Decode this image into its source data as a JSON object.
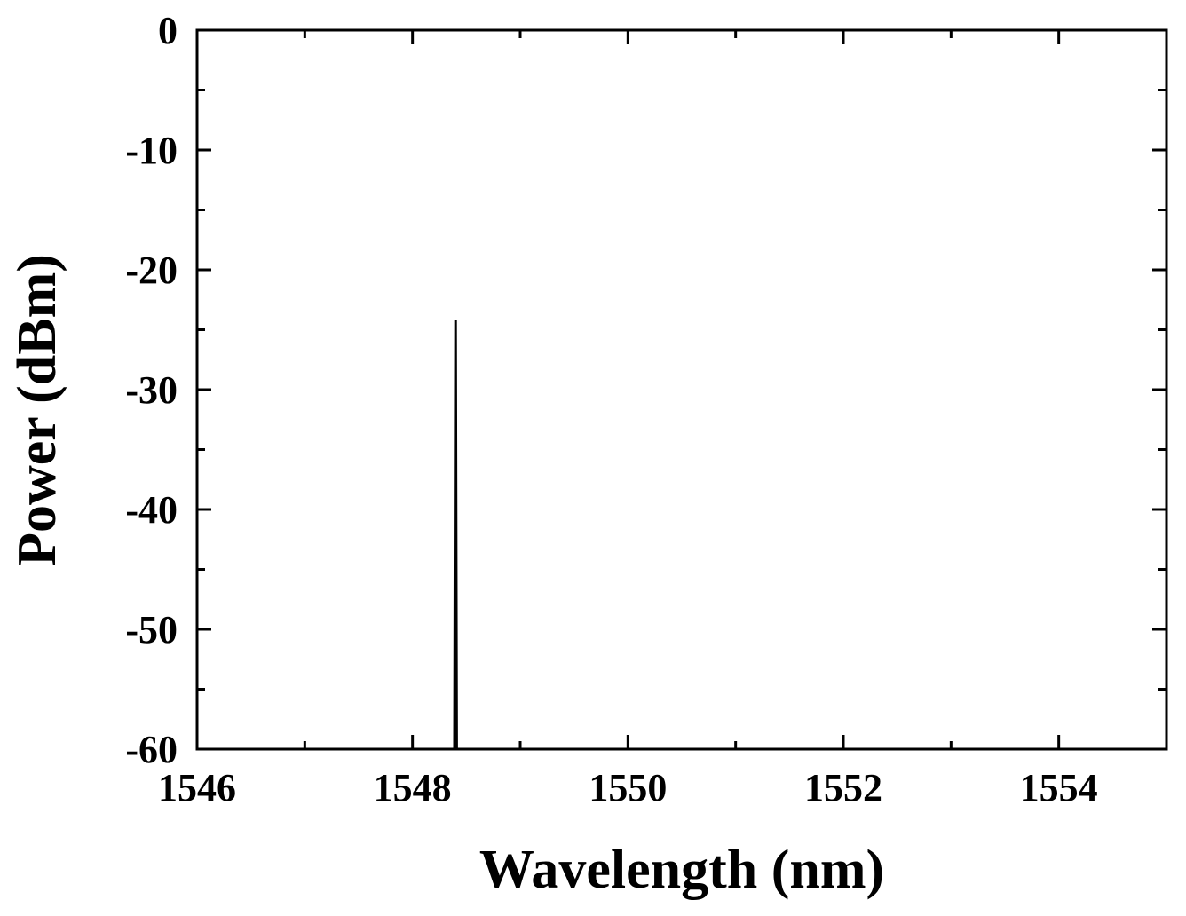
{
  "chart_data": {
    "type": "line",
    "title": "",
    "xlabel": "Wavelength (nm)",
    "ylabel": "Power (dBm)",
    "xlim": [
      1546,
      1555
    ],
    "ylim": [
      -60,
      0
    ],
    "x_ticks": [
      1546,
      1548,
      1550,
      1552,
      1554
    ],
    "x_tick_labels": [
      "1546",
      "1548",
      "1550",
      "1552",
      "1554"
    ],
    "y_ticks": [
      0,
      -10,
      -20,
      -30,
      -40,
      -50,
      -60
    ],
    "y_tick_labels": [
      "0",
      "-10",
      "-20",
      "-30",
      "-40",
      "-50",
      "-60"
    ],
    "grid": false,
    "legend": "none",
    "series": [
      {
        "x": [
          1548.39,
          1548.4,
          1548.41
        ],
        "y": [
          -60,
          -24.2,
          -60
        ],
        "color": "#000000"
      }
    ]
  }
}
